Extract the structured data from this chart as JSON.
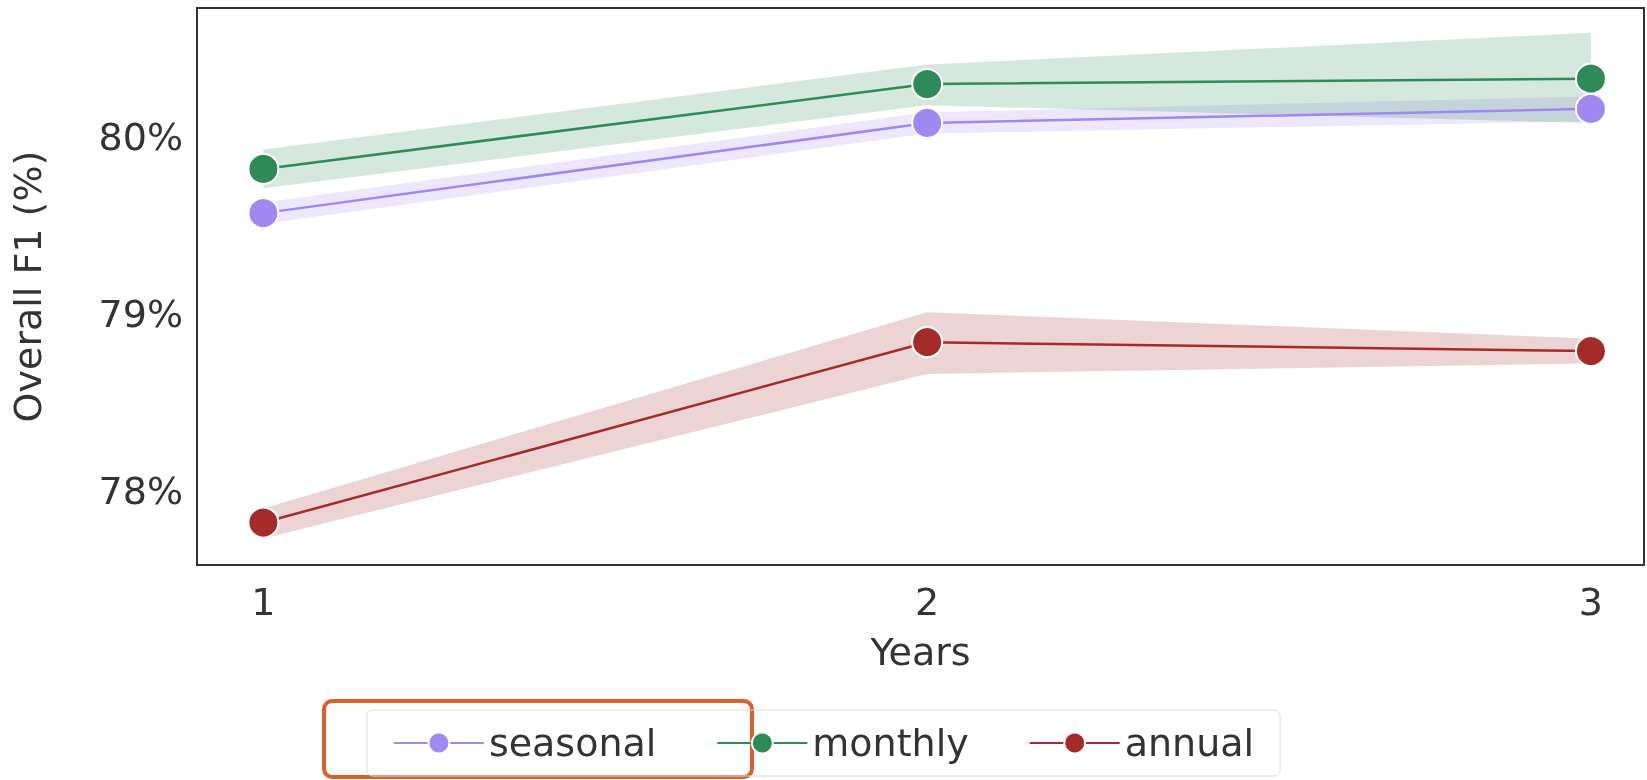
{
  "chart_data": {
    "type": "line",
    "xlabel": "Years",
    "ylabel": "Overall F1 (%)",
    "x": [
      1,
      2,
      3
    ],
    "series": [
      {
        "name": "seasonal",
        "color": "#9f88f0",
        "values": [
          79.57,
          80.08,
          80.16
        ],
        "lower": [
          79.51,
          80.02,
          80.09
        ],
        "upper": [
          79.63,
          80.14,
          80.23
        ]
      },
      {
        "name": "monthly",
        "color": "#2e8b57",
        "values": [
          79.82,
          80.3,
          80.33
        ],
        "lower": [
          79.71,
          80.18,
          80.08
        ],
        "upper": [
          79.93,
          80.41,
          80.59
        ]
      },
      {
        "name": "annual",
        "color": "#a52a2a",
        "values": [
          77.82,
          78.84,
          78.79
        ],
        "lower": [
          77.73,
          78.66,
          78.72
        ],
        "upper": [
          77.9,
          79.01,
          78.86
        ]
      }
    ],
    "xlim": [
      0.9,
      3.08
    ],
    "xticks": [
      1,
      2,
      3
    ],
    "ylim": [
      77.58,
      80.73
    ],
    "yticks": [
      {
        "value": 78,
        "label": "78%"
      },
      {
        "value": 79,
        "label": "79%"
      },
      {
        "value": 80,
        "label": "80%"
      }
    ],
    "grid": false,
    "legend": "bottom",
    "marker": "circle",
    "line_style": "solid"
  }
}
